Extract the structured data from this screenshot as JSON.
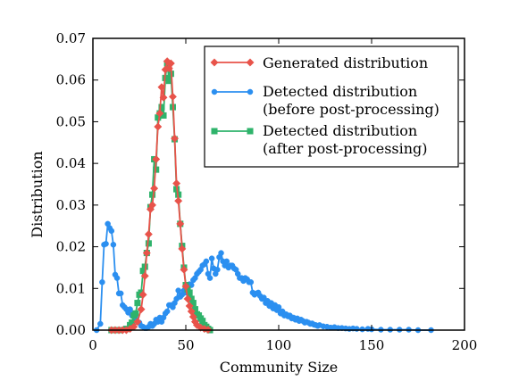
{
  "chart_data": {
    "type": "line",
    "title": "",
    "xlabel": "Community Size",
    "ylabel": "Distribution",
    "xlim": [
      0,
      200
    ],
    "ylim": [
      0,
      0.07
    ],
    "xticks": [
      0,
      50,
      100,
      150,
      200
    ],
    "xtick_labels": [
      "0",
      "50",
      "100",
      "150",
      "200"
    ],
    "yticks": [
      0,
      0.01,
      0.02,
      0.03,
      0.04,
      0.05,
      0.06,
      0.07
    ],
    "ytick_labels": [
      "0.00",
      "0.01",
      "0.02",
      "0.03",
      "0.04",
      "0.05",
      "0.06",
      "0.07"
    ],
    "grid": false,
    "legend_position": "top-right",
    "series": [
      {
        "name": "Generated distribution",
        "color": "#e8534a",
        "marker": "diamond",
        "points": [
          [
            10,
            0
          ],
          [
            12,
            0
          ],
          [
            14,
            0
          ],
          [
            16,
            0
          ],
          [
            18,
            0
          ],
          [
            20,
            0.0003
          ],
          [
            22,
            0.0008
          ],
          [
            24,
            0.002
          ],
          [
            26,
            0.005
          ],
          [
            27,
            0.0085
          ],
          [
            28,
            0.013
          ],
          [
            29,
            0.0185
          ],
          [
            30,
            0.023
          ],
          [
            31,
            0.029
          ],
          [
            32,
            0.03
          ],
          [
            33,
            0.034
          ],
          [
            34,
            0.041
          ],
          [
            35,
            0.0488
          ],
          [
            36,
            0.052
          ],
          [
            37,
            0.0583
          ],
          [
            38,
            0.0558
          ],
          [
            39,
            0.0625
          ],
          [
            40,
            0.0645
          ],
          [
            41,
            0.0628
          ],
          [
            42,
            0.064
          ],
          [
            43,
            0.056
          ],
          [
            44,
            0.046
          ],
          [
            45,
            0.0352
          ],
          [
            46,
            0.031
          ],
          [
            47,
            0.0255
          ],
          [
            48,
            0.0195
          ],
          [
            49,
            0.0145
          ],
          [
            50,
            0.0105
          ],
          [
            51,
            0.0075
          ],
          [
            52,
            0.0058
          ],
          [
            53,
            0.0045
          ],
          [
            54,
            0.0032
          ],
          [
            55,
            0.002
          ],
          [
            56,
            0.0012
          ],
          [
            58,
            0.0006
          ],
          [
            60,
            0.0003
          ],
          [
            62,
            0.0001
          ]
        ]
      },
      {
        "name": "Detected distribution\n(before post-processing)",
        "color": "#2b8ff0",
        "marker": "circle",
        "points": [
          [
            2,
            0
          ],
          [
            4,
            0.0015
          ],
          [
            5,
            0.0115
          ],
          [
            6,
            0.0205
          ],
          [
            7,
            0.0207
          ],
          [
            8,
            0.0255
          ],
          [
            9,
            0.0245
          ],
          [
            10,
            0.0238
          ],
          [
            11,
            0.0205
          ],
          [
            12,
            0.0133
          ],
          [
            13,
            0.0125
          ],
          [
            14,
            0.0088
          ],
          [
            15,
            0.0088
          ],
          [
            16,
            0.006
          ],
          [
            17,
            0.0055
          ],
          [
            18,
            0.005
          ],
          [
            19,
            0.0042
          ],
          [
            20,
            0.005
          ],
          [
            21,
            0.0035
          ],
          [
            22,
            0.004
          ],
          [
            23,
            0.0028
          ],
          [
            24,
            0.002
          ],
          [
            25,
            0.0018
          ],
          [
            26,
            0.001
          ],
          [
            27,
            0.0008
          ],
          [
            28,
            0.0005
          ],
          [
            29,
            0.0005
          ],
          [
            30,
            0.0008
          ],
          [
            31,
            0.0015
          ],
          [
            32,
            0.001
          ],
          [
            33,
            0.0015
          ],
          [
            34,
            0.0025
          ],
          [
            35,
            0.002
          ],
          [
            36,
            0.003
          ],
          [
            37,
            0.002
          ],
          [
            38,
            0.003
          ],
          [
            39,
            0.004
          ],
          [
            40,
            0.0045
          ],
          [
            41,
            0.006
          ],
          [
            42,
            0.006
          ],
          [
            43,
            0.0055
          ],
          [
            44,
            0.0065
          ],
          [
            45,
            0.0075
          ],
          [
            46,
            0.0095
          ],
          [
            47,
            0.008
          ],
          [
            48,
            0.0085
          ],
          [
            49,
            0.0095
          ],
          [
            50,
            0.009
          ],
          [
            51,
            0.0095
          ],
          [
            52,
            0.011
          ],
          [
            53,
            0.0108
          ],
          [
            54,
            0.012
          ],
          [
            55,
            0.0125
          ],
          [
            56,
            0.0135
          ],
          [
            57,
            0.014
          ],
          [
            58,
            0.0145
          ],
          [
            59,
            0.0155
          ],
          [
            60,
            0.0158
          ],
          [
            61,
            0.0165
          ],
          [
            62,
            0.0135
          ],
          [
            63,
            0.0125
          ],
          [
            64,
            0.0172
          ],
          [
            65,
            0.0148
          ],
          [
            66,
            0.0135
          ],
          [
            67,
            0.0145
          ],
          [
            68,
            0.0175
          ],
          [
            69,
            0.0185
          ],
          [
            70,
            0.0165
          ],
          [
            71,
            0.0155
          ],
          [
            72,
            0.0165
          ],
          [
            73,
            0.015
          ],
          [
            74,
            0.0155
          ],
          [
            75,
            0.0155
          ],
          [
            76,
            0.0148
          ],
          [
            77,
            0.0145
          ],
          [
            78,
            0.0135
          ],
          [
            79,
            0.0125
          ],
          [
            80,
            0.0125
          ],
          [
            81,
            0.0118
          ],
          [
            82,
            0.0125
          ],
          [
            83,
            0.0122
          ],
          [
            84,
            0.0115
          ],
          [
            85,
            0.0115
          ],
          [
            86,
            0.009
          ],
          [
            87,
            0.0085
          ],
          [
            88,
            0.0088
          ],
          [
            89,
            0.009
          ],
          [
            90,
            0.0082
          ],
          [
            91,
            0.0075
          ],
          [
            92,
            0.0078
          ],
          [
            93,
            0.0065
          ],
          [
            94,
            0.007
          ],
          [
            95,
            0.0058
          ],
          [
            96,
            0.0065
          ],
          [
            97,
            0.0052
          ],
          [
            98,
            0.006
          ],
          [
            99,
            0.0048
          ],
          [
            100,
            0.0055
          ],
          [
            101,
            0.004
          ],
          [
            102,
            0.0045
          ],
          [
            103,
            0.0035
          ],
          [
            104,
            0.0038
          ],
          [
            105,
            0.0033
          ],
          [
            106,
            0.0035
          ],
          [
            107,
            0.0028
          ],
          [
            108,
            0.003
          ],
          [
            109,
            0.0025
          ],
          [
            110,
            0.0028
          ],
          [
            111,
            0.0022
          ],
          [
            112,
            0.0025
          ],
          [
            113,
            0.0022
          ],
          [
            114,
            0.0018
          ],
          [
            115,
            0.002
          ],
          [
            116,
            0.0018
          ],
          [
            117,
            0.0015
          ],
          [
            118,
            0.0016
          ],
          [
            119,
            0.0013
          ],
          [
            120,
            0.0012
          ],
          [
            121,
            0.001
          ],
          [
            122,
            0.0012
          ],
          [
            124,
            0.0009
          ],
          [
            126,
            0.0008
          ],
          [
            128,
            0.0006
          ],
          [
            130,
            0.0007
          ],
          [
            132,
            0.0005
          ],
          [
            134,
            0.0005
          ],
          [
            136,
            0.0004
          ],
          [
            138,
            0.0003
          ],
          [
            140,
            0.0004
          ],
          [
            142,
            0.0003
          ],
          [
            145,
            0.0002
          ],
          [
            148,
            0.0003
          ],
          [
            150,
            0.0002
          ],
          [
            155,
            0.0001
          ],
          [
            160,
            0.0001
          ],
          [
            165,
            0.0001
          ],
          [
            170,
            0.0001
          ],
          [
            175,
            0
          ],
          [
            182,
            0
          ]
        ]
      },
      {
        "name": "Detected distribution\n(after post-processing)",
        "color": "#2fb36b",
        "marker": "square",
        "points": [
          [
            10,
            0
          ],
          [
            14,
            0
          ],
          [
            18,
            0.0003
          ],
          [
            20,
            0.0012
          ],
          [
            21,
            0.0018
          ],
          [
            22,
            0.0035
          ],
          [
            23,
            0.004
          ],
          [
            24,
            0.0065
          ],
          [
            25,
            0.0085
          ],
          [
            26,
            0.009
          ],
          [
            27,
            0.0142
          ],
          [
            28,
            0.0152
          ],
          [
            29,
            0.0185
          ],
          [
            30,
            0.0208
          ],
          [
            31,
            0.0295
          ],
          [
            32,
            0.0325
          ],
          [
            33,
            0.041
          ],
          [
            34,
            0.0385
          ],
          [
            35,
            0.051
          ],
          [
            36,
            0.052
          ],
          [
            37,
            0.0535
          ],
          [
            38,
            0.0515
          ],
          [
            39,
            0.0605
          ],
          [
            40,
            0.064
          ],
          [
            41,
            0.0598
          ],
          [
            42,
            0.0615
          ],
          [
            43,
            0.0535
          ],
          [
            44,
            0.0458
          ],
          [
            45,
            0.0338
          ],
          [
            46,
            0.0325
          ],
          [
            47,
            0.0255
          ],
          [
            48,
            0.0202
          ],
          [
            49,
            0.015
          ],
          [
            50,
            0.0108
          ],
          [
            51,
            0.0098
          ],
          [
            52,
            0.009
          ],
          [
            53,
            0.0075
          ],
          [
            54,
            0.0065
          ],
          [
            55,
            0.005
          ],
          [
            56,
            0.0038
          ],
          [
            57,
            0.0035
          ],
          [
            58,
            0.0028
          ],
          [
            59,
            0.0022
          ],
          [
            60,
            0.0012
          ],
          [
            61,
            0.0008
          ],
          [
            62,
            0.0003
          ],
          [
            63,
            0
          ]
        ]
      }
    ]
  }
}
